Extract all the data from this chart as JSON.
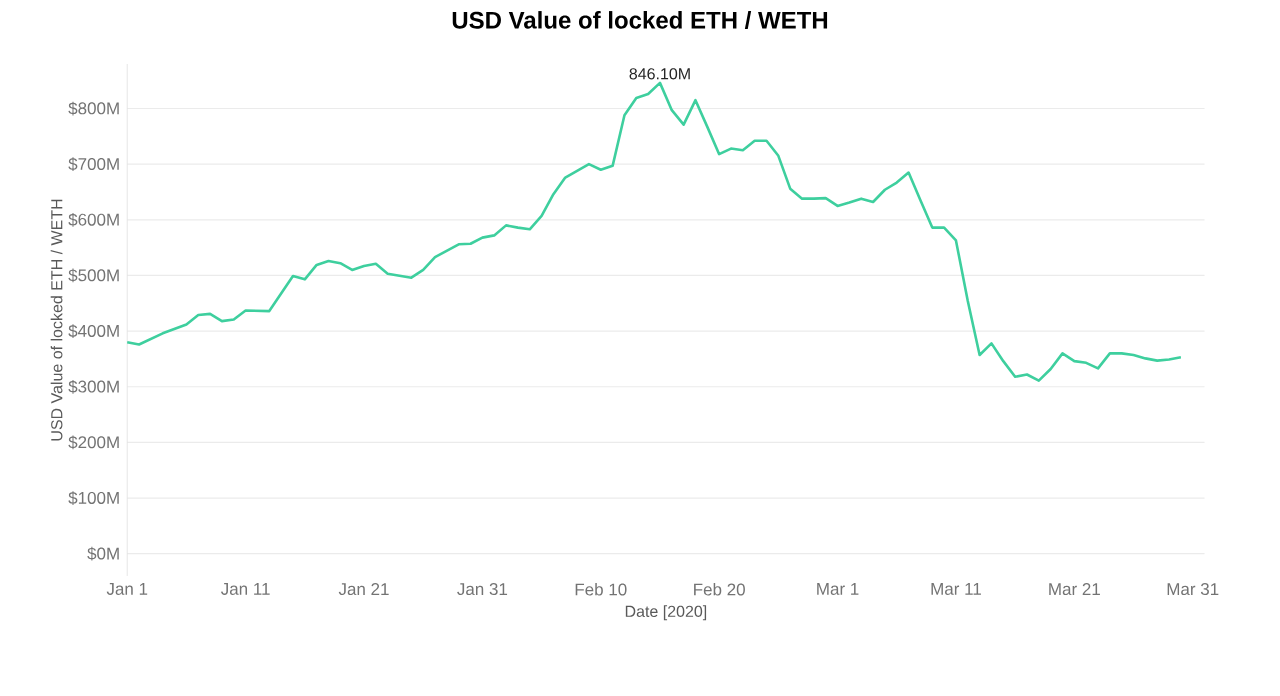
{
  "chart_data": {
    "type": "line",
    "title": "USD Value of locked ETH / WETH",
    "xlabel": "Date [2020]",
    "ylabel": "USD Value of locked ETH / WETH",
    "x": [
      "2020-01-01",
      "2020-01-02",
      "2020-01-04",
      "2020-01-06",
      "2020-01-07",
      "2020-01-08",
      "2020-01-09",
      "2020-01-10",
      "2020-01-11",
      "2020-01-13",
      "2020-01-15",
      "2020-01-16",
      "2020-01-17",
      "2020-01-18",
      "2020-01-19",
      "2020-01-20",
      "2020-01-21",
      "2020-01-22",
      "2020-01-23",
      "2020-01-25",
      "2020-01-26",
      "2020-01-27",
      "2020-01-29",
      "2020-01-30",
      "2020-01-31",
      "2020-02-01",
      "2020-02-02",
      "2020-02-03",
      "2020-02-04",
      "2020-02-05",
      "2020-02-06",
      "2020-02-07",
      "2020-02-08",
      "2020-02-09",
      "2020-02-10",
      "2020-02-11",
      "2020-02-12",
      "2020-02-13",
      "2020-02-14",
      "2020-02-15",
      "2020-02-16",
      "2020-02-17",
      "2020-02-18",
      "2020-02-19",
      "2020-02-20",
      "2020-02-21",
      "2020-02-22",
      "2020-02-23",
      "2020-02-24",
      "2020-02-25",
      "2020-02-26",
      "2020-02-27",
      "2020-02-28",
      "2020-02-29",
      "2020-03-01",
      "2020-03-02",
      "2020-03-03",
      "2020-03-04",
      "2020-03-05",
      "2020-03-06",
      "2020-03-07",
      "2020-03-08",
      "2020-03-09",
      "2020-03-10",
      "2020-03-11",
      "2020-03-12",
      "2020-03-13",
      "2020-03-14",
      "2020-03-15",
      "2020-03-16",
      "2020-03-17",
      "2020-03-18",
      "2020-03-19",
      "2020-03-20",
      "2020-03-21",
      "2020-03-22",
      "2020-03-23",
      "2020-03-24",
      "2020-03-25",
      "2020-03-26",
      "2020-03-27",
      "2020-03-28",
      "2020-03-29",
      "2020-03-30"
    ],
    "series": [
      {
        "color": "#3ecf9e",
        "values": [
          380,
          376,
          396,
          412,
          429,
          431,
          418,
          421,
          437,
          436,
          499,
          493,
          519,
          526,
          522,
          510,
          517,
          521,
          503,
          496,
          510,
          533,
          556,
          557,
          568,
          572,
          590,
          586,
          583,
          607,
          646,
          676,
          688,
          700,
          690,
          697,
          788,
          819,
          826,
          846.1,
          797,
          771,
          815,
          767,
          718,
          728,
          725,
          742,
          742,
          715,
          656,
          638,
          638,
          639,
          625,
          631,
          638,
          632,
          654,
          667,
          685,
          635,
          586,
          586,
          563,
          454,
          357,
          378,
          346,
          318,
          322,
          311,
          332,
          360,
          346,
          343,
          333,
          360,
          360,
          357,
          351,
          347,
          349,
          353
        ]
      }
    ],
    "annotations": [
      {
        "text": "846.10M",
        "x": "2020-02-15",
        "y": 846.1
      }
    ],
    "xlim": [
      "2020-01-01",
      "2020-04-01"
    ],
    "xticks": [
      {
        "value": "2020-01-01",
        "label": "Jan 1"
      },
      {
        "value": "2020-01-11",
        "label": "Jan 11"
      },
      {
        "value": "2020-01-21",
        "label": "Jan 21"
      },
      {
        "value": "2020-01-31",
        "label": "Jan 31"
      },
      {
        "value": "2020-02-10",
        "label": "Feb 10"
      },
      {
        "value": "2020-02-20",
        "label": "Feb 20"
      },
      {
        "value": "2020-03-01",
        "label": "Mar 1"
      },
      {
        "value": "2020-03-11",
        "label": "Mar 11"
      },
      {
        "value": "2020-03-21",
        "label": "Mar 21"
      },
      {
        "value": "2020-03-31",
        "label": "Mar 31"
      }
    ],
    "ylim": [
      -40,
      880
    ],
    "yticks": [
      {
        "value": 0,
        "label": "$0M"
      },
      {
        "value": 100,
        "label": "$100M"
      },
      {
        "value": 200,
        "label": "$200M"
      },
      {
        "value": 300,
        "label": "$300M"
      },
      {
        "value": 400,
        "label": "$400M"
      },
      {
        "value": 500,
        "label": "$500M"
      },
      {
        "value": 600,
        "label": "$600M"
      },
      {
        "value": 700,
        "label": "$700M"
      },
      {
        "value": 800,
        "label": "$800M"
      }
    ],
    "grid": "y",
    "marker": "none",
    "line_style": "solid"
  }
}
